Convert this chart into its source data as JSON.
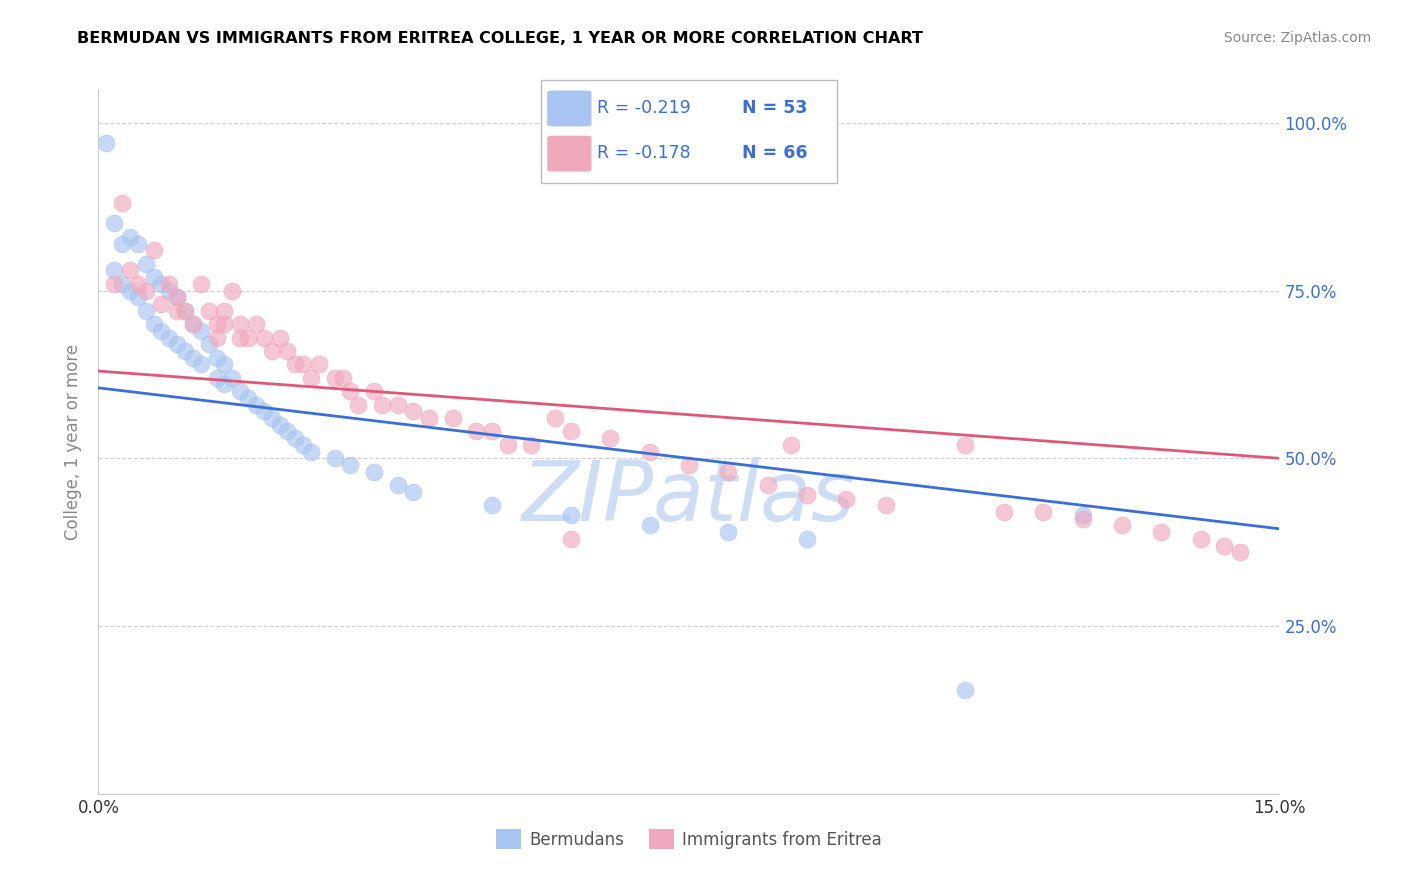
{
  "title": "BERMUDAN VS IMMIGRANTS FROM ERITREA COLLEGE, 1 YEAR OR MORE CORRELATION CHART",
  "source": "Source: ZipAtlas.com",
  "ylabel_label": "College, 1 year or more",
  "xlim": [
    0.0,
    0.15
  ],
  "ylim": [
    0.0,
    1.05
  ],
  "blue_color": "#a8c4f0",
  "pink_color": "#f0a8bc",
  "blue_line_color": "#3a6fd8",
  "pink_line_color": "#e05878",
  "text_color": "#3a6fd8",
  "watermark_color": "#ccddf5",
  "blue_line_x0": 0.0,
  "blue_line_y0": 0.605,
  "blue_line_x1": 0.15,
  "blue_line_y1": 0.395,
  "pink_line_x0": 0.0,
  "pink_line_y0": 0.63,
  "pink_line_x1": 0.15,
  "pink_line_y1": 0.5,
  "blue_N": 53,
  "pink_N": 66,
  "blue_R_str": "R = -0.219",
  "pink_R_str": "R = -0.178",
  "blue_N_str": "N = 53",
  "pink_N_str": "N = 66"
}
